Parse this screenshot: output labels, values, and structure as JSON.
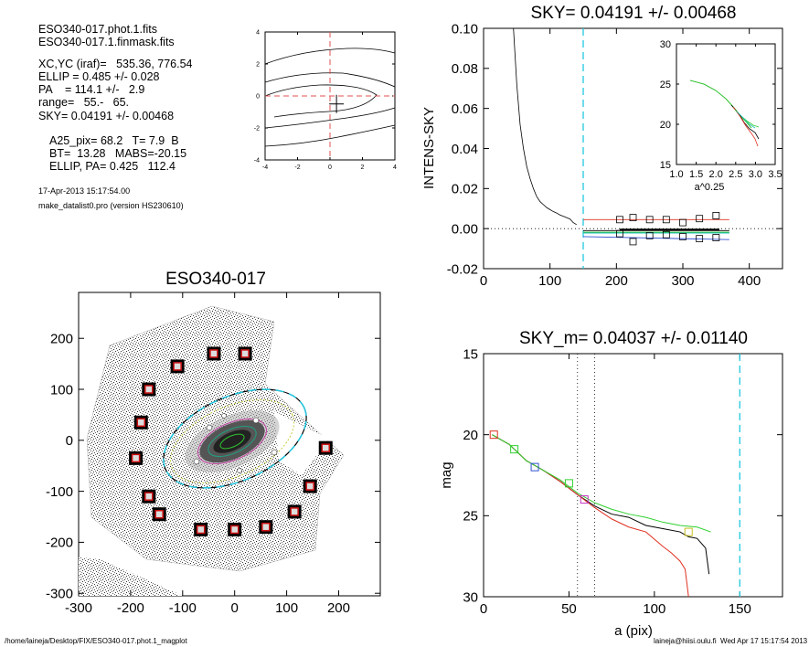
{
  "info": {
    "line1": "ESO340-017.phot.1.fits",
    "line2": "ESO340-017.1.finmask.fits",
    "line3": "XC,YC (iraf)=   535.36, 776.54",
    "line4": "ELLIP = 0.485 +/- 0.028",
    "line5": "PA    = 114.1 +/-   2.9",
    "line6": "range=   55.-   65.",
    "line7": "SKY= 0.04191 +/- 0.00468",
    "line8": "A25_pix= 68.2   T= 7.9  B",
    "line9": "BT=  13.28   MABS=-20.15",
    "line10": "ELLIP, PA= 0.425   112.4",
    "date": "17-Apr-2013 15:17:54.00",
    "program": "make_datalist0.pro (version HS230610)"
  },
  "footer": {
    "path": "/home/laineja/Desktop/FIX/ESO340-017.phot.1_magplot",
    "user": "laineja@hiisi.oulu.fi  Wed Apr 17 15:17:54 2013"
  },
  "chart_data": [
    {
      "type": "line",
      "name": "center-contour-plot",
      "xlim": [
        -4,
        4
      ],
      "ylim": [
        -4,
        4
      ],
      "xticks": [
        "-4",
        "-2",
        "0",
        "2",
        "4"
      ],
      "yticks": [
        "-4",
        "-2",
        "0",
        "2",
        "4"
      ],
      "marker": [
        0.4,
        -0.5
      ],
      "colors": {
        "dashed": "#e05050"
      }
    },
    {
      "type": "line",
      "title": "SKY= 0.04191 +/- 0.00468",
      "ylabel": "INTENS-SKY",
      "xlim": [
        0,
        450
      ],
      "ylim": [
        -0.02,
        0.1
      ],
      "xticks": [
        "0",
        "100",
        "200",
        "300",
        "400"
      ],
      "yticks": [
        "-0.02",
        "0.00",
        "0.02",
        "0.04",
        "0.06",
        "0.08",
        "0.10"
      ],
      "vline_cyan": 150,
      "profile_x": [
        45,
        50,
        55,
        60,
        65,
        70,
        75,
        80,
        85,
        90,
        95,
        100,
        105,
        110,
        115,
        120,
        125,
        130,
        135,
        140
      ],
      "profile_y": [
        0.1,
        0.072,
        0.052,
        0.04,
        0.031,
        0.025,
        0.02,
        0.016,
        0.0135,
        0.012,
        0.0105,
        0.0095,
        0.0085,
        0.0078,
        0.0068,
        0.0062,
        0.0055,
        0.0048,
        0.003,
        0.002
      ],
      "sky_box_x": [
        205,
        225,
        250,
        275,
        300,
        325,
        350
      ],
      "sky_box_upper": [
        0.0045,
        0.0055,
        0.0045,
        0.0045,
        0.003,
        0.005,
        0.0065
      ],
      "sky_box_lower": [
        -0.0025,
        -0.0065,
        -0.0035,
        -0.003,
        -0.004,
        -0.005,
        -0.0045
      ],
      "inset": {
        "xlabel": "a^0.25",
        "xlim": [
          1.0,
          3.5
        ],
        "ylim": [
          15,
          30
        ],
        "xticks": [
          "1.0",
          "1.5",
          "2.0",
          "2.5",
          "3.0",
          "3.5"
        ],
        "yticks": [
          "15",
          "20",
          "25",
          "30"
        ]
      }
    },
    {
      "type": "scatter",
      "title": "ESO340-017",
      "xlim": [
        -300,
        280
      ],
      "ylim": [
        -305,
        290
      ],
      "xticks": [
        "-300",
        "-200",
        "-100",
        "0",
        "100",
        "200"
      ],
      "yticks": [
        "-300",
        "-200",
        "-100",
        "0",
        "100",
        "200"
      ],
      "sky_boxes": [
        [
          -40,
          170
        ],
        [
          20,
          170
        ],
        [
          -110,
          145
        ],
        [
          -165,
          100
        ],
        [
          -180,
          35
        ],
        [
          -190,
          -35
        ],
        [
          175,
          -15
        ],
        [
          145,
          -90
        ],
        [
          -165,
          -110
        ],
        [
          -145,
          -145
        ],
        [
          115,
          -140
        ],
        [
          -65,
          -175
        ],
        [
          0,
          -175
        ],
        [
          60,
          -170
        ]
      ],
      "ellipse_cyan": {
        "a": 115,
        "b": 60,
        "pa_deg": 24
      },
      "colors": {
        "box": "#cc1010",
        "cyan": "#20c8e0",
        "fit": "#c8d040"
      }
    },
    {
      "type": "line",
      "title": "SKY_m=  0.04037 +/- 0.01140",
      "xlabel": "a (pix)",
      "ylabel": "mag",
      "xlim": [
        0,
        175
      ],
      "ylim": [
        30,
        15
      ],
      "xticks": [
        "0",
        "50",
        "100",
        "150"
      ],
      "yticks": [
        "15",
        "20",
        "25",
        "30"
      ],
      "vline_dotted": [
        55,
        65
      ],
      "vline_cyan": 150,
      "series": [
        {
          "color": "#000000",
          "x": [
            5,
            15,
            25,
            35,
            45,
            55,
            65,
            75,
            85,
            95,
            105,
            115,
            120,
            125,
            130,
            132
          ],
          "y": [
            20.0,
            20.6,
            21.6,
            22.2,
            22.9,
            23.7,
            24.4,
            24.9,
            25.1,
            25.6,
            25.8,
            26.0,
            26.3,
            26.4,
            27.0,
            28.6
          ]
        },
        {
          "color": "#e03020",
          "x": [
            5,
            15,
            25,
            35,
            45,
            55,
            65,
            75,
            85,
            95,
            105,
            110,
            115,
            118,
            120
          ],
          "y": [
            20.0,
            20.6,
            21.6,
            22.2,
            22.9,
            23.7,
            24.5,
            25.2,
            25.7,
            26.0,
            26.9,
            27.3,
            27.8,
            28.3,
            30.0
          ]
        },
        {
          "color": "#30d030",
          "x": [
            5,
            15,
            25,
            35,
            45,
            55,
            65,
            75,
            85,
            95,
            105,
            115,
            125,
            133
          ],
          "y": [
            20.0,
            20.6,
            21.6,
            22.2,
            22.8,
            23.6,
            24.2,
            24.6,
            24.9,
            25.1,
            25.4,
            25.6,
            25.7,
            26.0
          ]
        }
      ],
      "markers": [
        {
          "x": 6,
          "y": 20.0,
          "color": "#e03020"
        },
        {
          "x": 18,
          "y": 20.9,
          "color": "#30d030"
        },
        {
          "x": 30,
          "y": 22.0,
          "color": "#3050d0"
        },
        {
          "x": 50,
          "y": 23.0,
          "color": "#30d030"
        },
        {
          "x": 59,
          "y": 24.0,
          "color": "#c030c0"
        },
        {
          "x": 120,
          "y": 26.0,
          "color": "#c8c020"
        }
      ]
    }
  ]
}
